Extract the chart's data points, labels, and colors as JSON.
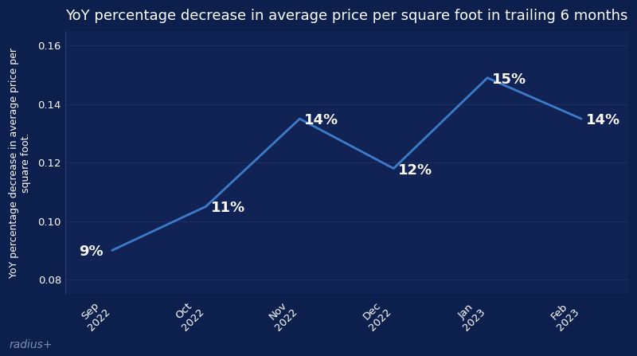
{
  "title": "YoY percentage decrease in average price per square foot in trailing 6 months",
  "ylabel": "YoY percentage decrease in average price per\nsquare foot.",
  "x_labels": [
    "Sep\n2022",
    "Oct\n2022",
    "Nov\n2022",
    "Dec\n2022",
    "Jan\n2023",
    "Feb\n2023"
  ],
  "y_values": [
    0.09,
    0.105,
    0.135,
    0.118,
    0.149,
    0.135
  ],
  "annotations": [
    "9%",
    "11%",
    "14%",
    "12%",
    "15%",
    "14%"
  ],
  "annotation_offsets_x": [
    -0.35,
    0.05,
    0.05,
    0.05,
    0.05,
    0.05
  ],
  "annotation_offsets_y": [
    -0.003,
    -0.003,
    -0.003,
    -0.003,
    -0.003,
    -0.003
  ],
  "ylim": [
    0.075,
    0.165
  ],
  "yticks": [
    0.08,
    0.1,
    0.12,
    0.14,
    0.16
  ],
  "line_color": "#3d7cc9",
  "background_color": "#0d1f4c",
  "plot_bg_color": "#112255",
  "text_color": "#ffffff",
  "grid_color": "#1e3060",
  "spine_color": "#2a3f7a",
  "title_fontsize": 13,
  "label_fontsize": 9,
  "tick_fontsize": 9.5,
  "annotation_fontsize": 13,
  "watermark": "radius+",
  "watermark_color": "#8090b0"
}
